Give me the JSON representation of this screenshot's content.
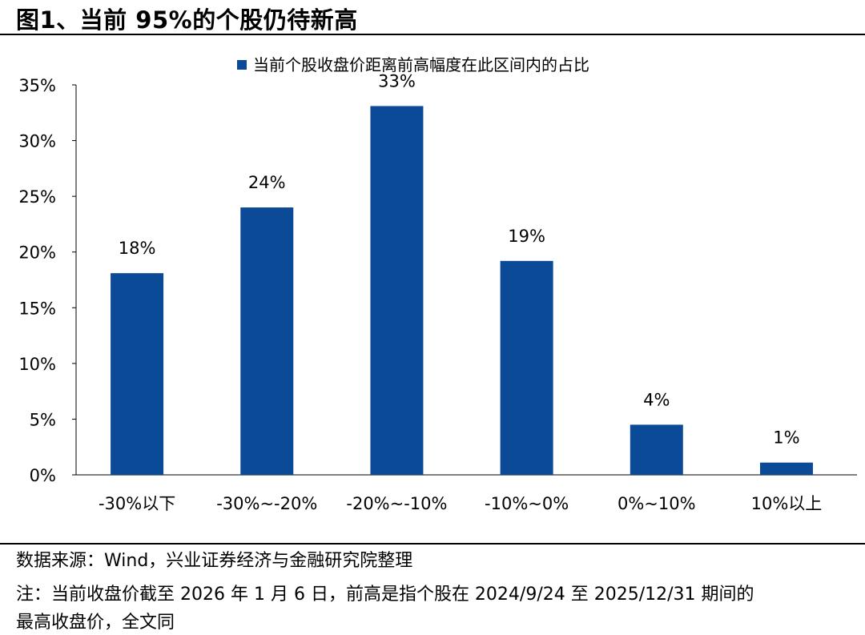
{
  "title": "图1、当前 95%的个股仍待新高",
  "chart_data": {
    "type": "bar",
    "categories": [
      "-30%以下",
      "-30%~-20%",
      "-20%~-10%",
      "-10%~0%",
      "0%~10%",
      "10%以上"
    ],
    "series": [
      {
        "name": "当前个股收盘价距离前高幅度在此区间内的占比",
        "values": [
          18.1,
          24.0,
          33.1,
          19.2,
          4.5,
          1.1
        ],
        "data_labels": [
          "18%",
          "24%",
          "33%",
          "19%",
          "4%",
          "1%"
        ]
      }
    ],
    "ylim": [
      0,
      35
    ],
    "yticks": [
      "0%",
      "5%",
      "10%",
      "15%",
      "20%",
      "25%",
      "30%",
      "35%"
    ],
    "grid": false,
    "legend": "top",
    "bar_color": "#0a4a96"
  },
  "footer": {
    "source": "数据来源：Wind，兴业证券经济与金融研究院整理",
    "note_line1": "注：当前收盘价截至 2026 年 1 月 6 日，前高是指个股在 2024/9/24 至 2025/12/31 期间的",
    "note_line2": "最高收盘价，全文同"
  }
}
